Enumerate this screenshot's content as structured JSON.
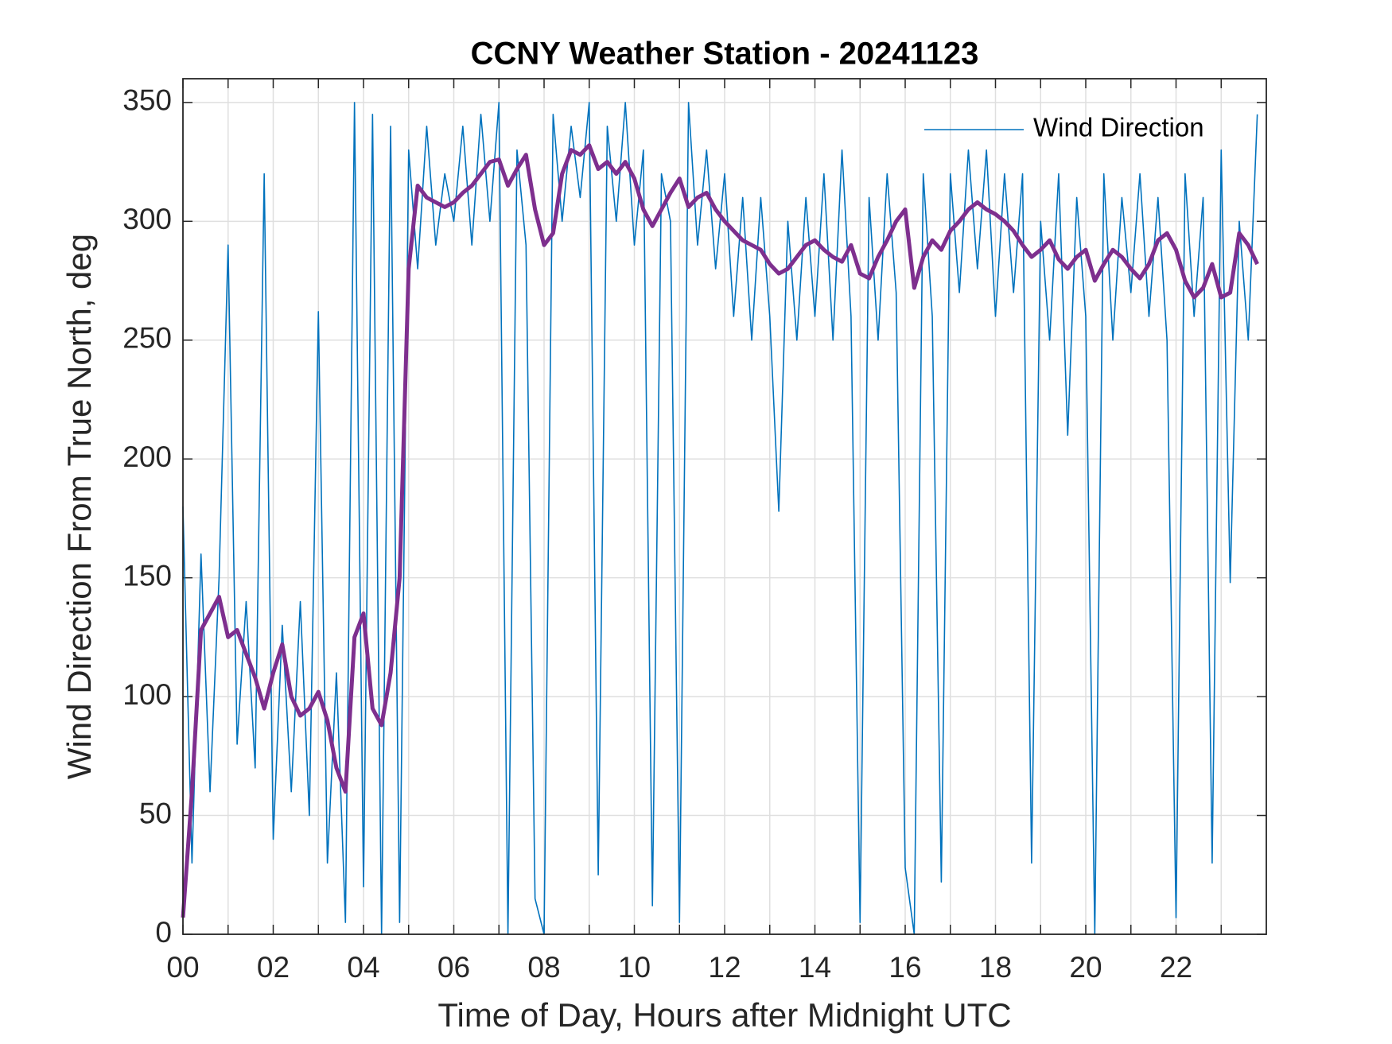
{
  "chart_data": {
    "type": "line",
    "title": "CCNY Weather Station - 20241123",
    "xlabel": "Time of Day, Hours after Midnight UTC",
    "ylabel": "Wind Direction From True North, deg",
    "x": [
      0,
      0.2,
      0.4,
      0.6,
      0.8,
      1,
      1.2,
      1.4,
      1.6,
      1.8,
      2,
      2.2,
      2.4,
      2.6,
      2.8,
      3,
      3.2,
      3.4,
      3.6,
      3.8,
      4,
      4.2,
      4.4,
      4.6,
      4.8,
      5,
      5.2,
      5.4,
      5.6,
      5.8,
      6,
      6.2,
      6.4,
      6.6,
      6.8,
      7,
      7.2,
      7.4,
      7.6,
      7.8,
      8,
      8.2,
      8.4,
      8.6,
      8.8,
      9,
      9.2,
      9.4,
      9.6,
      9.8,
      10,
      10.2,
      10.4,
      10.6,
      10.8,
      11,
      11.2,
      11.4,
      11.6,
      11.8,
      12,
      12.2,
      12.4,
      12.6,
      12.8,
      13,
      13.2,
      13.4,
      13.6,
      13.8,
      14,
      14.2,
      14.4,
      14.6,
      14.8,
      15,
      15.2,
      15.4,
      15.6,
      15.8,
      16,
      16.2,
      16.4,
      16.6,
      16.8,
      17,
      17.2,
      17.4,
      17.6,
      17.8,
      18,
      18.2,
      18.4,
      18.6,
      18.8,
      19,
      19.2,
      19.4,
      19.6,
      19.8,
      20,
      20.2,
      20.4,
      20.6,
      20.8,
      21,
      21.2,
      21.4,
      21.6,
      21.8,
      22,
      22.2,
      22.4,
      22.6,
      22.8,
      23,
      23.2,
      23.4,
      23.6,
      23.8
    ],
    "series": [
      {
        "name": "Wind Direction",
        "color": "#0072bd",
        "values": [
          180,
          30,
          160,
          60,
          150,
          290,
          80,
          140,
          70,
          320,
          40,
          130,
          60,
          140,
          50,
          262,
          30,
          110,
          5,
          350,
          20,
          345,
          0,
          340,
          5,
          330,
          280,
          340,
          290,
          320,
          300,
          340,
          290,
          345,
          300,
          350,
          0,
          330,
          290,
          15,
          0,
          345,
          300,
          340,
          310,
          350,
          25,
          340,
          300,
          350,
          290,
          330,
          12,
          320,
          300,
          5,
          350,
          290,
          330,
          280,
          320,
          260,
          310,
          250,
          310,
          260,
          178,
          300,
          250,
          310,
          260,
          320,
          250,
          330,
          260,
          5,
          310,
          250,
          320,
          270,
          28,
          0,
          320,
          260,
          22,
          320,
          270,
          330,
          280,
          330,
          260,
          320,
          270,
          320,
          30,
          300,
          250,
          320,
          210,
          310,
          260,
          0,
          320,
          250,
          310,
          270,
          320,
          260,
          310,
          250,
          7,
          320,
          260,
          310,
          30,
          330,
          148,
          300,
          250,
          345
        ]
      },
      {
        "color": "#7e2f8e",
        "values": [
          7,
          60,
          128,
          135,
          142,
          125,
          128,
          118,
          108,
          95,
          110,
          122,
          100,
          92,
          95,
          102,
          90,
          70,
          60,
          125,
          135,
          95,
          88,
          110,
          150,
          280,
          315,
          310,
          308,
          306,
          308,
          312,
          315,
          320,
          325,
          326,
          315,
          322,
          328,
          305,
          290,
          295,
          320,
          330,
          328,
          332,
          322,
          325,
          320,
          325,
          318,
          305,
          298,
          305,
          312,
          318,
          306,
          310,
          312,
          305,
          300,
          296,
          292,
          290,
          288,
          282,
          278,
          280,
          285,
          290,
          292,
          288,
          285,
          283,
          290,
          278,
          276,
          285,
          292,
          300,
          305,
          272,
          285,
          292,
          288,
          296,
          300,
          305,
          308,
          305,
          303,
          300,
          296,
          290,
          285,
          288,
          292,
          284,
          280,
          285,
          288,
          275,
          282,
          288,
          285,
          280,
          276,
          282,
          292,
          295,
          288,
          275,
          268,
          272,
          282,
          268,
          270,
          295,
          290,
          282
        ]
      }
    ],
    "xlim": [
      0,
      24
    ],
    "xticks": [
      {
        "value": 0,
        "label": "00"
      },
      {
        "value": 2,
        "label": "02"
      },
      {
        "value": 4,
        "label": "04"
      },
      {
        "value": 6,
        "label": "06"
      },
      {
        "value": 8,
        "label": "08"
      },
      {
        "value": 10,
        "label": "10"
      },
      {
        "value": 12,
        "label": "12"
      },
      {
        "value": 14,
        "label": "14"
      },
      {
        "value": 16,
        "label": "16"
      },
      {
        "value": 18,
        "label": "18"
      },
      {
        "value": 20,
        "label": "20"
      },
      {
        "value": 22,
        "label": "22"
      }
    ],
    "xminorticks": [
      1,
      3,
      5,
      7,
      9,
      11,
      13,
      15,
      17,
      19,
      21,
      23
    ],
    "ylim": [
      0,
      360
    ],
    "yticks": [
      0,
      50,
      100,
      150,
      200,
      250,
      300,
      350
    ],
    "grid": true,
    "legend": "upper right"
  }
}
